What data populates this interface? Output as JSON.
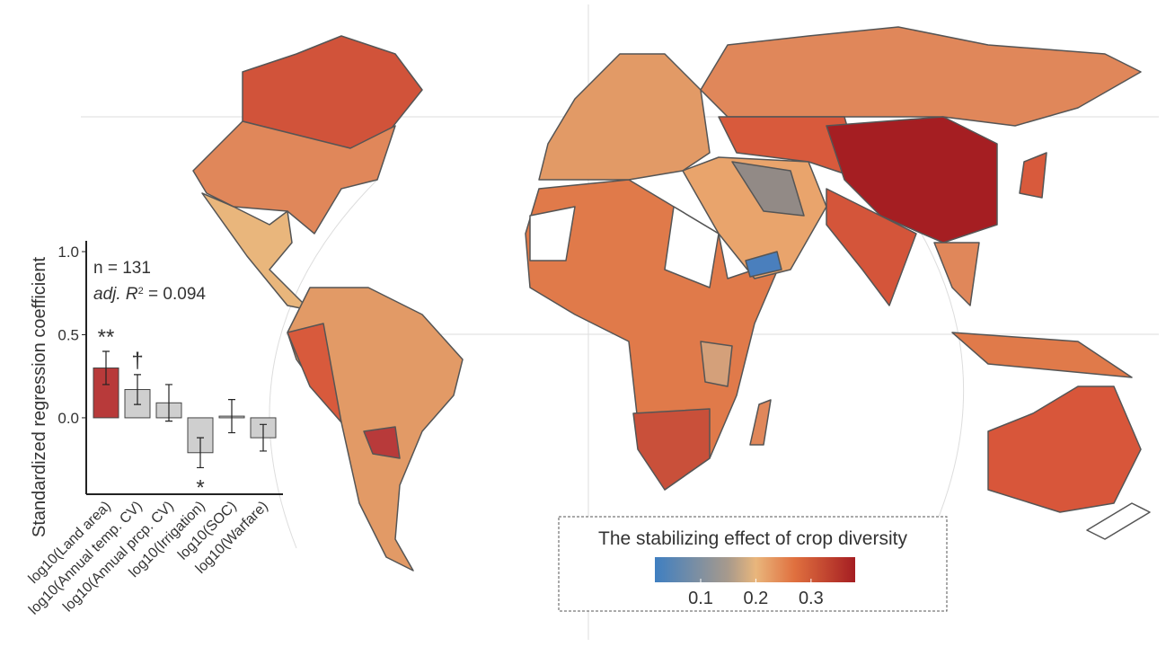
{
  "chart_data": {
    "type": "bar",
    "y_label": "Standardized regression coefficient",
    "categories": [
      "log10(Land area)",
      "log10(Annual temp. CV)",
      "log10(Annual prcp. CV)",
      "log10(Irrigation)",
      "log10(SOC)",
      "log10(Warfare)"
    ],
    "values": [
      0.3,
      0.17,
      0.09,
      -0.21,
      0.01,
      -0.12
    ],
    "errors": [
      0.1,
      0.09,
      0.11,
      0.09,
      0.1,
      0.08
    ],
    "colors": [
      "#b83a3a",
      "#cfcfcf",
      "#cfcfcf",
      "#cfcfcf",
      "#cfcfcf",
      "#cfcfcf"
    ],
    "significance": [
      "**",
      "†",
      null,
      "*",
      null,
      null
    ],
    "n_text": "n = 131",
    "r2_prefix": "adj. ",
    "r2_symbol": "R",
    "r2_superscript": "2",
    "r2_value": " = 0.094",
    "ylim": [
      -0.46,
      1.065
    ],
    "yticks": [
      {
        "value": 0,
        "label": "0.0"
      },
      {
        "value": 0.5,
        "label": "0.5"
      },
      {
        "value": 1,
        "label": "1.0"
      }
    ]
  },
  "map": {
    "legend_title": "The stabilizing effect of crop diversity",
    "colorbar_lim": [
      0.017,
      0.38
    ],
    "colorbar_ticks": [
      0.1,
      0.2,
      0.3
    ],
    "colormap": [
      {
        "value": 0.017,
        "color": "#3f7fc1"
      },
      {
        "value": 0.15,
        "color": "#a89a8c"
      },
      {
        "value": 0.2,
        "color": "#e9b67c"
      },
      {
        "value": 0.27,
        "color": "#e0703f"
      },
      {
        "value": 0.38,
        "color": "#a51e22"
      }
    ]
  }
}
